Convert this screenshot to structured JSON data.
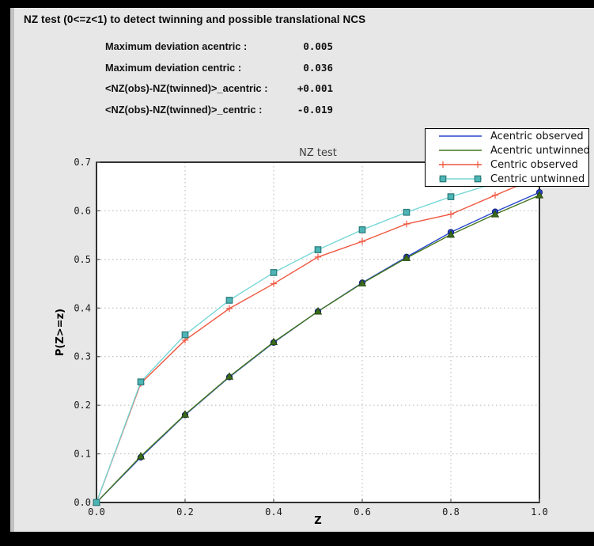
{
  "window": {
    "outer_background": "#000000",
    "panel_background": "#e7e7e7",
    "panel_edge_color": "#c2c2c2"
  },
  "header": {
    "title": "NZ test (0<=z<1) to detect twinning and possible translational NCS"
  },
  "stats": {
    "rows": [
      {
        "label": "Maximum deviation acentric :",
        "value": "0.005"
      },
      {
        "label": "Maximum deviation centric :",
        "value": "0.036"
      },
      {
        "label": "<NZ(obs)-NZ(twinned)>_acentric :",
        "value": "+0.001"
      },
      {
        "label": "<NZ(obs)-NZ(twinned)>_centric :",
        "value": "-0.019"
      }
    ]
  },
  "chart_data": {
    "type": "line",
    "title": "NZ test",
    "xlabel": "Z",
    "ylabel": "P(Z>=z)",
    "xlim": [
      0.0,
      1.0
    ],
    "ylim": [
      0.0,
      0.7
    ],
    "xticks": [
      0.0,
      0.2,
      0.4,
      0.6,
      0.8,
      1.0
    ],
    "yticks": [
      0.0,
      0.1,
      0.2,
      0.3,
      0.4,
      0.5,
      0.6,
      0.7
    ],
    "grid": true,
    "grid_color": "#b3b3b3",
    "plot_background": "#ffffff",
    "legend_position": "top-right",
    "x": [
      0.0,
      0.1,
      0.2,
      0.3,
      0.4,
      0.5,
      0.6,
      0.7,
      0.8,
      0.9,
      1.0
    ],
    "series": [
      {
        "name": "Acentric observed",
        "color": "#2847cf",
        "marker": "circle",
        "marker_fill": "#2645c8",
        "marker_edge": "#131f7a",
        "values": [
          0.0,
          0.093,
          0.18,
          0.258,
          0.329,
          0.393,
          0.452,
          0.505,
          0.556,
          0.598,
          0.638
        ]
      },
      {
        "name": "Acentric untwinned",
        "color": "#45761f",
        "marker": "triangle",
        "marker_fill": "#3c6b1a",
        "marker_edge": "#264a10",
        "values": [
          0.0,
          0.095,
          0.181,
          0.259,
          0.33,
          0.393,
          0.451,
          0.503,
          0.551,
          0.593,
          0.632
        ]
      },
      {
        "name": "Centric observed",
        "color": "#ef5740",
        "marker": "plus",
        "marker_fill": "#ef5740",
        "marker_edge": "#ef5740",
        "values": [
          0.0,
          0.245,
          0.334,
          0.399,
          0.45,
          0.505,
          0.537,
          0.573,
          0.593,
          0.632,
          0.67
        ]
      },
      {
        "name": "Centric untwinned",
        "color": "#76d6d6",
        "marker": "square",
        "marker_fill": "#4db5b5",
        "marker_edge": "#2e7d7d",
        "values": [
          0.0,
          0.248,
          0.345,
          0.416,
          0.473,
          0.52,
          0.561,
          0.597,
          0.629,
          0.657,
          0.683
        ]
      }
    ]
  }
}
